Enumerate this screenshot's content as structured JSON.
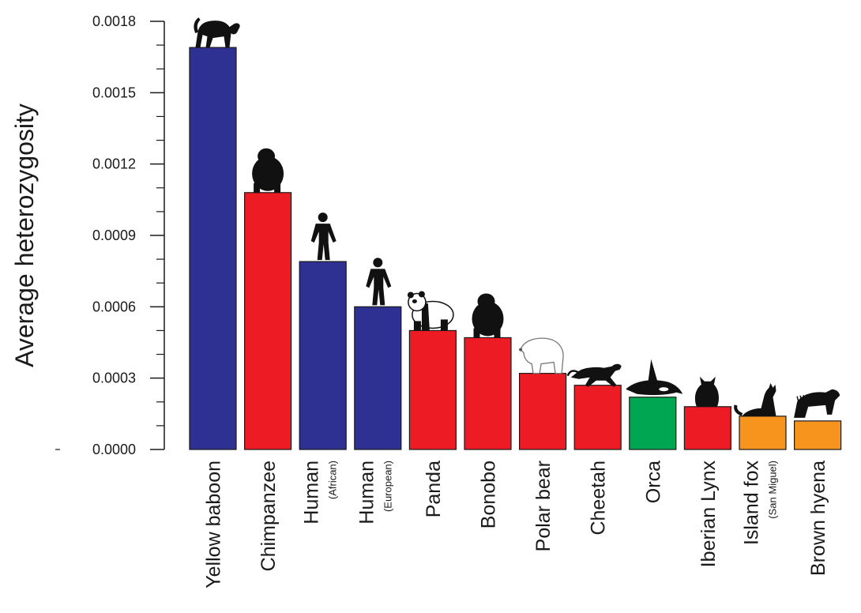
{
  "chart_data": {
    "type": "bar",
    "title": "",
    "xlabel": "",
    "ylabel": "Average heterozygosity",
    "ylim": [
      0,
      0.0018
    ],
    "yticks": [
      "0.0000",
      "0.0003",
      "0.0006",
      "0.0009",
      "0.0012",
      "0.0015",
      "0.0018"
    ],
    "categories": [
      {
        "label": "Yellow baboon",
        "sublabel": "",
        "value": 0.00169,
        "color": "#2e3192",
        "icon": "baboon-icon"
      },
      {
        "label": "Chimpanzee",
        "sublabel": "",
        "value": 0.00108,
        "color": "#ed1c24",
        "icon": "chimpanzee-icon"
      },
      {
        "label": "Human",
        "sublabel": "(African)",
        "value": 0.00079,
        "color": "#2e3192",
        "icon": "human-icon"
      },
      {
        "label": "Human",
        "sublabel": "(European)",
        "value": 0.0006,
        "color": "#2e3192",
        "icon": "human-icon"
      },
      {
        "label": "Panda",
        "sublabel": "",
        "value": 0.0005,
        "color": "#ed1c24",
        "icon": "panda-icon"
      },
      {
        "label": "Bonobo",
        "sublabel": "",
        "value": 0.00047,
        "color": "#ed1c24",
        "icon": "bonobo-icon"
      },
      {
        "label": "Polar bear",
        "sublabel": "",
        "value": 0.00032,
        "color": "#ed1c24",
        "icon": "polar-bear-icon"
      },
      {
        "label": "Cheetah",
        "sublabel": "",
        "value": 0.00027,
        "color": "#ed1c24",
        "icon": "cheetah-icon"
      },
      {
        "label": "Orca",
        "sublabel": "",
        "value": 0.00022,
        "color": "#00a651",
        "icon": "orca-icon"
      },
      {
        "label": "Iberian Lynx",
        "sublabel": "",
        "value": 0.00018,
        "color": "#ed1c24",
        "icon": "lynx-icon"
      },
      {
        "label": "Island fox",
        "sublabel": "(San Miguel)",
        "value": 0.00014,
        "color": "#f7941d",
        "icon": "fox-icon"
      },
      {
        "label": "Brown hyena",
        "sublabel": "",
        "value": 0.00012,
        "color": "#f7941d",
        "icon": "hyena-icon"
      }
    ],
    "grid": false,
    "legend": "none"
  }
}
